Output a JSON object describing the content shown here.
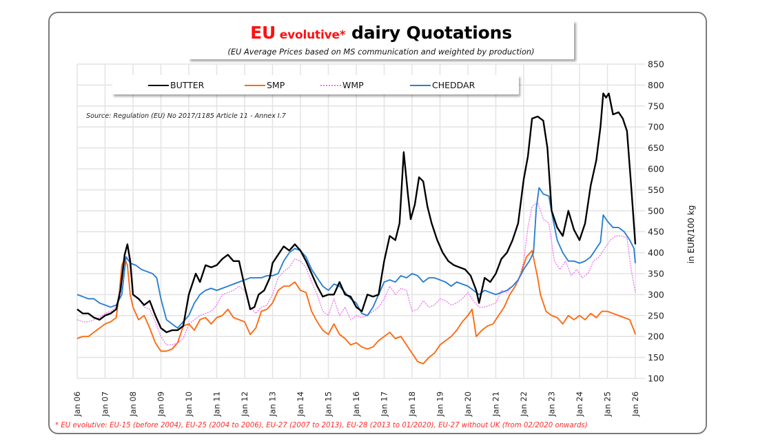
{
  "title": {
    "part1": "EU",
    "part2": " evolutive*",
    "part3": " dairy Quotations",
    "subtitle": "(EU Average Prices based on MS communication and weighted by production)"
  },
  "source": "Source: Regulation (EU) No 2017/1185 Article 11 - Annex I.7",
  "footnote": "* EU evolutive: EU-15 (before 2004), EU-25 (2004 to 2006), EU-27 (2007 to 2013), EU-28 (2013 to 01/2020), EU-27 without UK (from 02/2020 onwards)",
  "chart_data": {
    "type": "line",
    "title": "EU evolutive* dairy Quotations",
    "subtitle": "(EU Average Prices based on MS communication and weighted by production)",
    "xlabel": "",
    "ylabel": "in EUR/100 kg",
    "y_axis_side": "right",
    "ylim": [
      100,
      850
    ],
    "yticks": [
      100,
      150,
      200,
      250,
      300,
      350,
      400,
      450,
      500,
      550,
      600,
      650,
      700,
      750,
      800,
      850
    ],
    "xlim": [
      2006,
      2026
    ],
    "xtick_labels": [
      "Jan 06",
      "Jan 07",
      "Jan 08",
      "Jan 09",
      "Jan 10",
      "Jan 11",
      "Jan 12",
      "Jan 13",
      "Jan 14",
      "Jan 15",
      "Jan 16",
      "Jan 17",
      "Jan 18",
      "Jan 19",
      "Jan 20",
      "Jan 21",
      "Jan 22",
      "Jan 23",
      "Jan 24",
      "Jan 25",
      "Jan 26"
    ],
    "xtick_values": [
      2006,
      2007,
      2008,
      2009,
      2010,
      2011,
      2012,
      2013,
      2014,
      2015,
      2016,
      2017,
      2018,
      2019,
      2020,
      2021,
      2022,
      2023,
      2024,
      2025,
      2026
    ],
    "grid": true,
    "legend_position": "top",
    "series": [
      {
        "name": "BUTTER",
        "color": "#000000",
        "style": "solid",
        "x": [
          2006.0,
          2006.2,
          2006.4,
          2006.6,
          2006.8,
          2007.0,
          2007.2,
          2007.4,
          2007.55,
          2007.7,
          2007.8,
          2007.9,
          2008.0,
          2008.2,
          2008.4,
          2008.6,
          2008.8,
          2009.0,
          2009.2,
          2009.4,
          2009.6,
          2009.8,
          2010.0,
          2010.1,
          2010.25,
          2010.4,
          2010.6,
          2010.8,
          2011.0,
          2011.2,
          2011.4,
          2011.6,
          2011.8,
          2012.0,
          2012.2,
          2012.35,
          2012.5,
          2012.7,
          2012.9,
          2013.0,
          2013.2,
          2013.4,
          2013.6,
          2013.8,
          2014.0,
          2014.2,
          2014.4,
          2014.6,
          2014.8,
          2015.0,
          2015.2,
          2015.4,
          2015.6,
          2015.8,
          2016.0,
          2016.2,
          2016.4,
          2016.6,
          2016.8,
          2017.0,
          2017.2,
          2017.4,
          2017.55,
          2017.7,
          2017.85,
          2017.95,
          2018.1,
          2018.25,
          2018.4,
          2018.55,
          2018.7,
          2018.9,
          2019.1,
          2019.3,
          2019.5,
          2019.7,
          2019.9,
          2020.1,
          2020.3,
          2020.4,
          2020.6,
          2020.8,
          2021.0,
          2021.2,
          2021.4,
          2021.6,
          2021.8,
          2022.0,
          2022.15,
          2022.3,
          2022.5,
          2022.7,
          2022.85,
          2023.0,
          2023.2,
          2023.4,
          2023.6,
          2023.8,
          2024.0,
          2024.2,
          2024.4,
          2024.6,
          2024.75,
          2024.85,
          2024.95,
          2025.05,
          2025.2,
          2025.4,
          2025.55,
          2025.7,
          2025.85,
          2026.0
        ],
        "values": [
          265,
          255,
          255,
          245,
          240,
          250,
          255,
          265,
          310,
          395,
          420,
          380,
          300,
          290,
          275,
          285,
          250,
          220,
          210,
          215,
          215,
          225,
          300,
          320,
          350,
          330,
          370,
          365,
          370,
          385,
          395,
          380,
          380,
          320,
          265,
          270,
          300,
          310,
          340,
          375,
          395,
          415,
          405,
          420,
          405,
          380,
          350,
          320,
          295,
          300,
          300,
          330,
          300,
          295,
          270,
          260,
          300,
          295,
          300,
          380,
          440,
          430,
          470,
          640,
          540,
          480,
          515,
          580,
          570,
          510,
          470,
          430,
          400,
          380,
          370,
          365,
          360,
          345,
          310,
          280,
          340,
          330,
          350,
          385,
          400,
          430,
          470,
          575,
          630,
          720,
          725,
          715,
          650,
          500,
          460,
          440,
          500,
          455,
          430,
          470,
          560,
          620,
          700,
          780,
          770,
          780,
          730,
          735,
          720,
          690,
          560,
          420
        ]
      },
      {
        "name": "SMP",
        "color": "#ff6a10",
        "style": "solid",
        "x": [
          2006.0,
          2006.2,
          2006.4,
          2006.6,
          2006.8,
          2007.0,
          2007.2,
          2007.4,
          2007.5,
          2007.6,
          2007.7,
          2007.8,
          2007.9,
          2008.0,
          2008.2,
          2008.4,
          2008.6,
          2008.8,
          2009.0,
          2009.2,
          2009.4,
          2009.6,
          2009.8,
          2010.0,
          2010.2,
          2010.4,
          2010.6,
          2010.8,
          2011.0,
          2011.2,
          2011.4,
          2011.6,
          2011.8,
          2012.0,
          2012.2,
          2012.4,
          2012.6,
          2012.8,
          2013.0,
          2013.2,
          2013.4,
          2013.6,
          2013.8,
          2014.0,
          2014.2,
          2014.4,
          2014.6,
          2014.8,
          2015.0,
          2015.2,
          2015.4,
          2015.6,
          2015.8,
          2016.0,
          2016.2,
          2016.4,
          2016.6,
          2016.8,
          2017.0,
          2017.2,
          2017.4,
          2017.6,
          2017.8,
          2018.0,
          2018.2,
          2018.4,
          2018.6,
          2018.8,
          2019.0,
          2019.2,
          2019.4,
          2019.6,
          2019.8,
          2020.0,
          2020.15,
          2020.3,
          2020.5,
          2020.7,
          2020.9,
          2021.1,
          2021.3,
          2021.5,
          2021.7,
          2021.9,
          2022.1,
          2022.3,
          2022.5,
          2022.6,
          2022.8,
          2023.0,
          2023.2,
          2023.4,
          2023.6,
          2023.8,
          2024.0,
          2024.2,
          2024.4,
          2024.6,
          2024.8,
          2025.0,
          2025.2,
          2025.4,
          2025.6,
          2025.8,
          2025.95,
          2026.0
        ],
        "values": [
          195,
          200,
          200,
          210,
          220,
          230,
          235,
          245,
          300,
          370,
          385,
          370,
          300,
          270,
          240,
          250,
          220,
          185,
          165,
          165,
          170,
          185,
          225,
          230,
          215,
          240,
          245,
          230,
          245,
          250,
          265,
          245,
          240,
          235,
          205,
          220,
          260,
          265,
          280,
          310,
          320,
          320,
          330,
          310,
          305,
          260,
          235,
          215,
          205,
          230,
          205,
          195,
          180,
          185,
          175,
          170,
          175,
          190,
          200,
          210,
          195,
          200,
          180,
          160,
          140,
          135,
          150,
          160,
          180,
          190,
          200,
          215,
          235,
          250,
          265,
          200,
          215,
          225,
          230,
          250,
          270,
          300,
          320,
          350,
          390,
          405,
          340,
          300,
          260,
          250,
          245,
          230,
          250,
          240,
          250,
          240,
          255,
          245,
          260,
          260,
          255,
          250,
          245,
          240,
          215,
          205
        ]
      },
      {
        "name": "WMP",
        "color": "#ee70ee",
        "style": "dotted",
        "x": [
          2006.0,
          2006.2,
          2006.4,
          2006.6,
          2006.8,
          2007.0,
          2007.2,
          2007.4,
          2007.55,
          2007.7,
          2007.85,
          2008.0,
          2008.2,
          2008.4,
          2008.6,
          2008.8,
          2009.0,
          2009.2,
          2009.4,
          2009.6,
          2009.8,
          2010.0,
          2010.2,
          2010.4,
          2010.6,
          2010.8,
          2011.0,
          2011.2,
          2011.4,
          2011.6,
          2011.8,
          2012.0,
          2012.2,
          2012.4,
          2012.6,
          2012.8,
          2013.0,
          2013.2,
          2013.4,
          2013.6,
          2013.8,
          2014.0,
          2014.2,
          2014.4,
          2014.6,
          2014.8,
          2015.0,
          2015.2,
          2015.4,
          2015.6,
          2015.8,
          2016.0,
          2016.2,
          2016.4,
          2016.6,
          2016.8,
          2017.0,
          2017.2,
          2017.4,
          2017.6,
          2017.8,
          2018.0,
          2018.2,
          2018.4,
          2018.6,
          2018.8,
          2019.0,
          2019.2,
          2019.4,
          2019.6,
          2019.8,
          2020.0,
          2020.2,
          2020.4,
          2020.6,
          2020.8,
          2021.0,
          2021.2,
          2021.4,
          2021.6,
          2021.8,
          2022.0,
          2022.15,
          2022.3,
          2022.5,
          2022.7,
          2022.9,
          2023.1,
          2023.3,
          2023.5,
          2023.7,
          2023.9,
          2024.1,
          2024.3,
          2024.5,
          2024.7,
          2024.9,
          2025.1,
          2025.3,
          2025.5,
          2025.7,
          2025.85,
          2026.0
        ],
        "values": [
          240,
          235,
          235,
          240,
          245,
          255,
          260,
          270,
          320,
          385,
          390,
          300,
          290,
          270,
          265,
          235,
          200,
          180,
          180,
          185,
          195,
          230,
          240,
          250,
          255,
          260,
          275,
          300,
          305,
          310,
          320,
          310,
          270,
          255,
          270,
          275,
          300,
          340,
          355,
          365,
          385,
          380,
          365,
          330,
          300,
          260,
          250,
          290,
          250,
          270,
          240,
          250,
          245,
          250,
          260,
          270,
          290,
          320,
          300,
          315,
          310,
          260,
          265,
          285,
          270,
          275,
          290,
          285,
          275,
          280,
          290,
          305,
          285,
          270,
          270,
          275,
          280,
          310,
          305,
          320,
          330,
          380,
          460,
          510,
          520,
          480,
          470,
          380,
          360,
          380,
          345,
          360,
          340,
          350,
          380,
          390,
          410,
          430,
          440,
          440,
          435,
          360,
          305
        ]
      },
      {
        "name": "CHEDDAR",
        "color": "#2a7fd0",
        "style": "solid",
        "x": [
          2006.0,
          2006.2,
          2006.4,
          2006.6,
          2006.8,
          2007.0,
          2007.2,
          2007.4,
          2007.6,
          2007.75,
          2007.9,
          2008.1,
          2008.3,
          2008.5,
          2008.7,
          2008.85,
          2009.0,
          2009.2,
          2009.4,
          2009.6,
          2009.8,
          2010.0,
          2010.2,
          2010.4,
          2010.6,
          2010.8,
          2011.0,
          2011.2,
          2011.4,
          2011.6,
          2011.8,
          2012.0,
          2012.2,
          2012.4,
          2012.6,
          2012.8,
          2013.0,
          2013.2,
          2013.4,
          2013.6,
          2013.8,
          2014.0,
          2014.2,
          2014.4,
          2014.6,
          2014.8,
          2015.0,
          2015.2,
          2015.4,
          2015.6,
          2015.8,
          2016.0,
          2016.2,
          2016.4,
          2016.6,
          2016.8,
          2017.0,
          2017.2,
          2017.4,
          2017.6,
          2017.8,
          2018.0,
          2018.2,
          2018.4,
          2018.6,
          2018.8,
          2019.0,
          2019.2,
          2019.4,
          2019.6,
          2019.8,
          2020.0,
          2020.2,
          2020.4,
          2020.6,
          2020.8,
          2021.0,
          2021.2,
          2021.4,
          2021.6,
          2021.8,
          2022.0,
          2022.2,
          2022.35,
          2022.45,
          2022.55,
          2022.7,
          2022.9,
          2023.05,
          2023.2,
          2023.4,
          2023.6,
          2023.8,
          2024.0,
          2024.2,
          2024.4,
          2024.6,
          2024.75,
          2024.85,
          2025.0,
          2025.2,
          2025.4,
          2025.6,
          2025.8,
          2025.95,
          2026.0
        ],
        "values": [
          300,
          295,
          290,
          290,
          280,
          275,
          270,
          275,
          300,
          390,
          375,
          370,
          360,
          355,
          350,
          340,
          290,
          240,
          230,
          220,
          235,
          250,
          280,
          300,
          310,
          315,
          310,
          315,
          320,
          325,
          330,
          335,
          340,
          340,
          340,
          345,
          345,
          350,
          380,
          400,
          410,
          405,
          390,
          360,
          340,
          320,
          310,
          325,
          320,
          305,
          290,
          280,
          255,
          250,
          270,
          300,
          330,
          335,
          330,
          345,
          340,
          350,
          345,
          330,
          340,
          340,
          335,
          330,
          320,
          330,
          325,
          320,
          310,
          300,
          310,
          305,
          300,
          305,
          310,
          320,
          335,
          360,
          380,
          400,
          505,
          555,
          540,
          535,
          480,
          430,
          400,
          380,
          380,
          375,
          380,
          390,
          410,
          425,
          490,
          475,
          460,
          460,
          450,
          430,
          410,
          375
        ]
      }
    ]
  }
}
